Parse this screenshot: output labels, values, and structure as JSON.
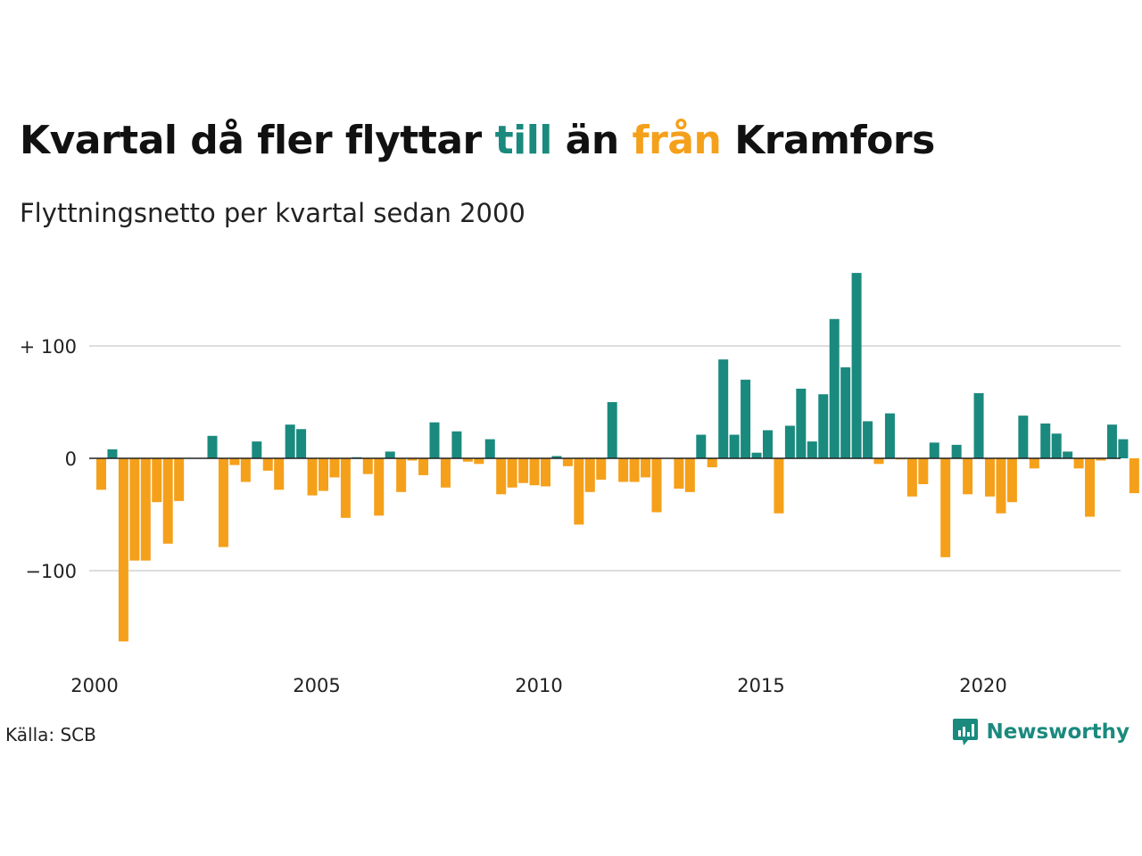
{
  "title": {
    "part1": "Kvartal då fler flyttar ",
    "till": "till",
    "part2": " än ",
    "fran": "från",
    "part3": " Kramfors"
  },
  "subtitle": "Flyttningsnetto per kvartal sedan 2000",
  "source": "Källa: SCB",
  "brand": "Newsworthy",
  "colors": {
    "positive": "#1a8a7e",
    "negative": "#f5a01a",
    "grid": "#dddddd",
    "zero": "#222222"
  },
  "chart_data": {
    "type": "bar",
    "x_start": "2000Q1",
    "ylim": [
      -170,
      170
    ],
    "yticks": [
      {
        "value": 100,
        "label": "+ 100"
      },
      {
        "value": 0,
        "label": "0"
      },
      {
        "value": -100,
        "label": "−100"
      }
    ],
    "xticks": [
      "2000",
      "2005",
      "2010",
      "2015",
      "2020"
    ],
    "grid": true,
    "values": [
      -28,
      8,
      -163,
      -91,
      -91,
      -39,
      -76,
      -38,
      0,
      0,
      20,
      -79,
      -6,
      -21,
      15,
      -11,
      -28,
      30,
      26,
      -33,
      -29,
      -17,
      -53,
      1,
      -14,
      -51,
      6,
      -30,
      -2,
      -15,
      32,
      -26,
      24,
      -3,
      -5,
      17,
      -32,
      -26,
      -22,
      -24,
      -25,
      2,
      -7,
      -59,
      -30,
      -19,
      50,
      -21,
      -21,
      -17,
      -48,
      0,
      -27,
      -30,
      21,
      -8,
      88,
      21,
      70,
      5,
      25,
      -49,
      29,
      62,
      15,
      57,
      124,
      81,
      165,
      33,
      -5,
      40,
      -1,
      -34,
      -23,
      14,
      -88,
      12,
      -32,
      58,
      -34,
      -49,
      -39,
      38,
      -9,
      31,
      22,
      6,
      -9,
      -52,
      -2,
      30,
      17,
      -31
    ]
  }
}
